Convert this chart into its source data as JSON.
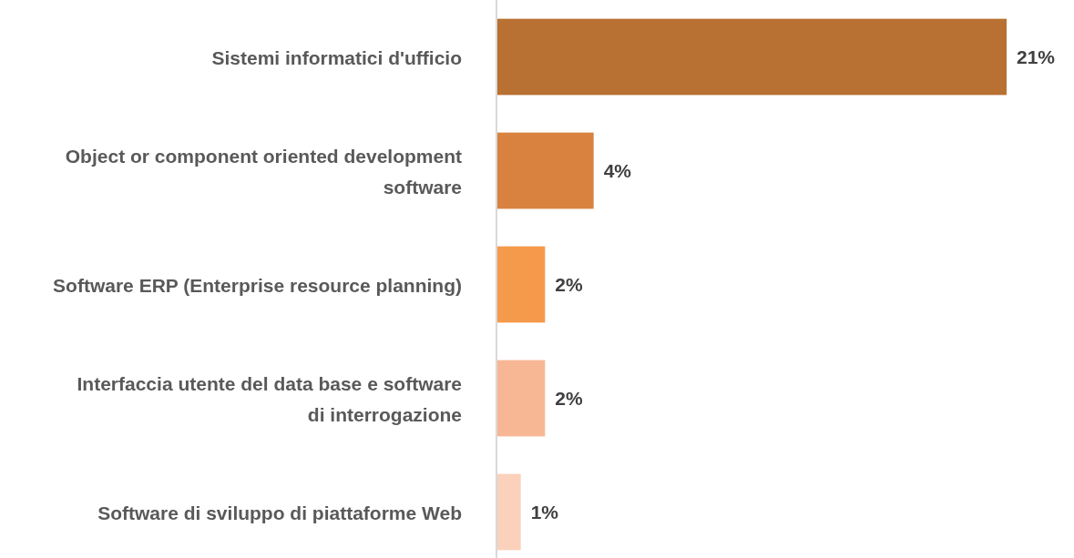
{
  "chart_data": {
    "type": "bar",
    "orientation": "horizontal",
    "categories": [
      "Sistemi informatici d'ufficio",
      "Object or component oriented development software",
      "Software ERP (Enterprise resource planning)",
      "Interfaccia utente del data base e software di interrogazione",
      "Software di sviluppo di piattaforme Web"
    ],
    "values": [
      21,
      4,
      2,
      2,
      1
    ],
    "colors": [
      "#b87033",
      "#d9823f",
      "#f59a4a",
      "#f8b794",
      "#fad1bb"
    ],
    "value_labels": [
      "21%",
      "4%",
      "2%",
      "2%",
      "1%"
    ]
  }
}
